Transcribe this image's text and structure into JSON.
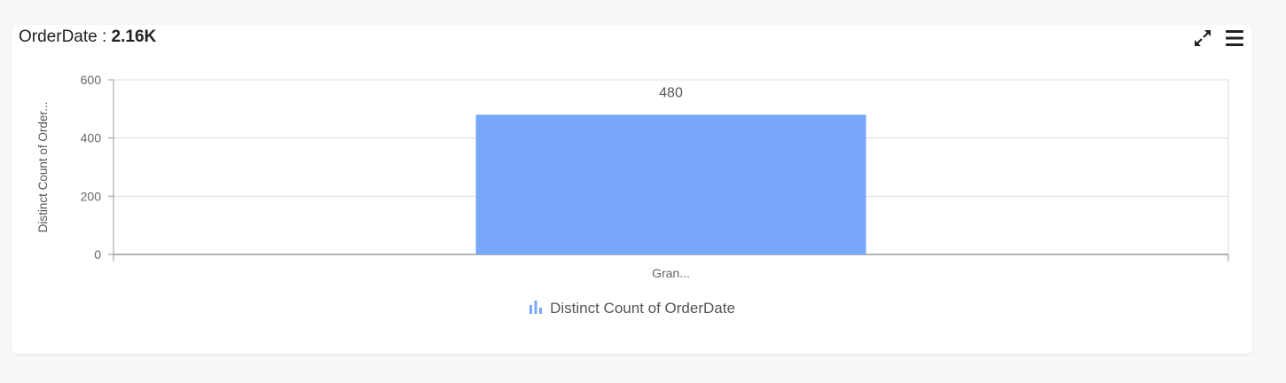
{
  "widget": {
    "title_label": "OrderDate :",
    "title_value": "2.16K",
    "accent_color": "#78a7f9",
    "icons": [
      "expand-icon",
      "hamburger-menu-icon"
    ]
  },
  "chart_data": {
    "type": "bar",
    "title": "",
    "xlabel": "",
    "ylabel": "Distinct Count of Order...",
    "categories": [
      "Gran..."
    ],
    "series": [
      {
        "name": "Distinct Count of OrderDate",
        "values": [
          480
        ],
        "color": "#78a7f9"
      }
    ],
    "data_labels": [
      "480"
    ],
    "ylim": [
      0,
      600
    ],
    "yticks": [
      0,
      200,
      400,
      600
    ],
    "grid": true,
    "legend": "bottom"
  }
}
